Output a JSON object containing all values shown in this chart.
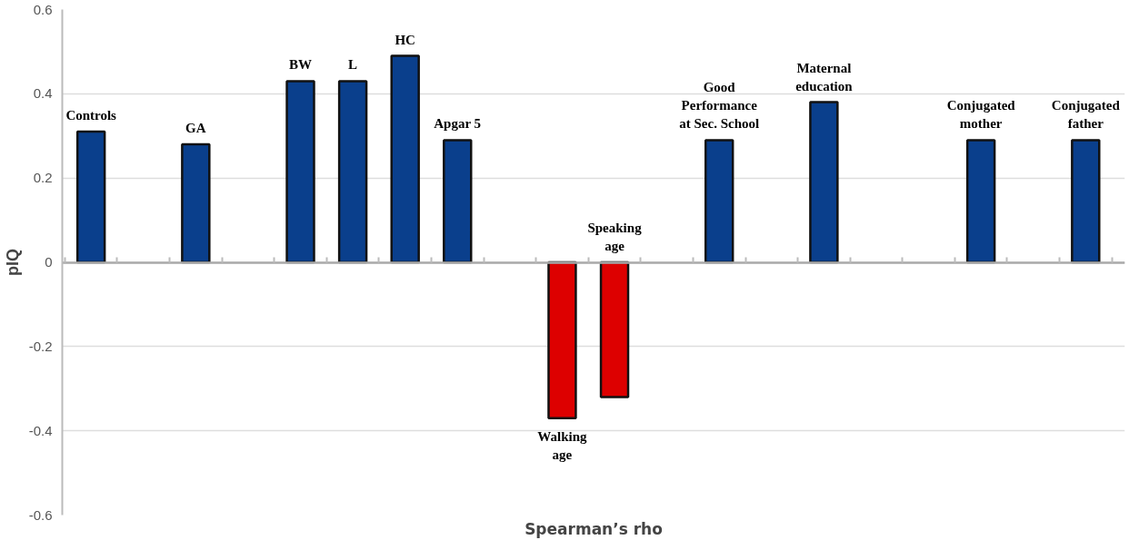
{
  "chart_data": {
    "type": "bar",
    "xlabel": "Spearman’s rho",
    "ylabel": "pIQ",
    "categories": [
      "Controls",
      null,
      "GA",
      null,
      "BW",
      "L",
      "HC",
      "Apgar 5",
      null,
      "Walking\nage",
      "Speaking\nage",
      null,
      "Good\nPerformance\nat Sec. School",
      null,
      "Maternal\neducation",
      null,
      null,
      "Conjugated\nmother",
      null,
      "Conjugated\nfather"
    ],
    "values": [
      0.31,
      null,
      0.28,
      null,
      0.43,
      0.43,
      0.49,
      0.29,
      null,
      -0.37,
      -0.32,
      null,
      0.29,
      null,
      0.38,
      null,
      null,
      0.29,
      null,
      0.29
    ],
    "colors": [
      "#0a3f8c",
      null,
      "#0a3f8c",
      null,
      "#0a3f8c",
      "#0a3f8c",
      "#0a3f8c",
      "#0a3f8c",
      null,
      "#dd0000",
      "#dd0000",
      null,
      "#0a3f8c",
      null,
      "#0a3f8c",
      null,
      null,
      "#0a3f8c",
      null,
      "#0a3f8c"
    ],
    "ylim": [
      -0.6,
      0.6
    ],
    "yticks": [
      -0.6,
      -0.4,
      -0.2,
      0,
      0.2,
      0.4,
      0.6
    ],
    "grid": "y",
    "tick_labels": "y"
  }
}
